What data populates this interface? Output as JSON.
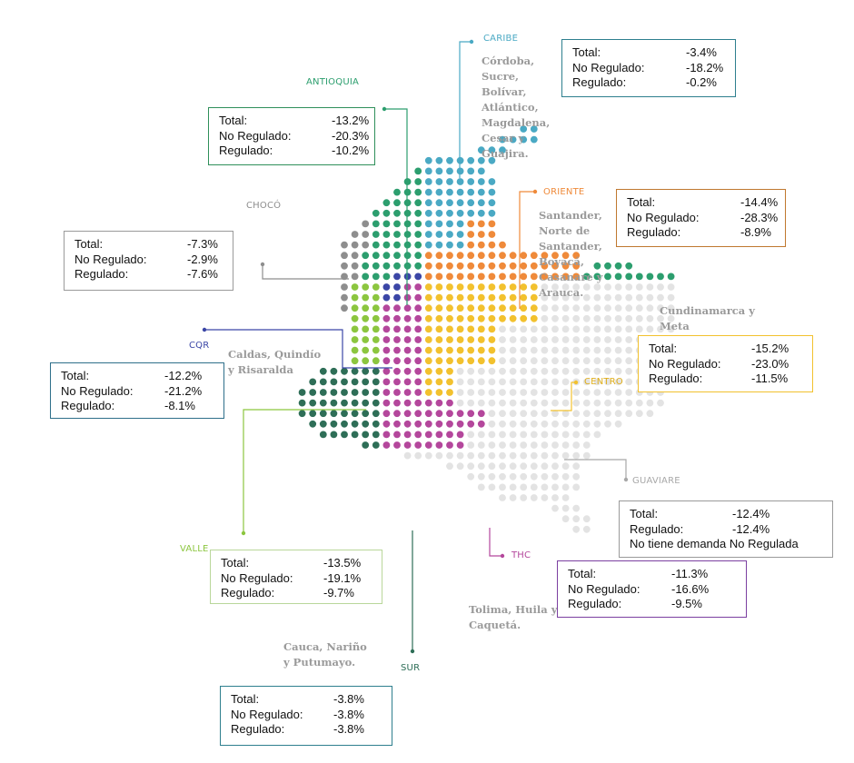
{
  "regions": [
    {
      "id": "caribe",
      "label": "CARIBE",
      "color": "#4aa9c4",
      "description": [
        "Córdoba,",
        "Sucre,",
        "Bolívar,",
        "Atlántico,",
        "Magdalena,",
        "Cesar y",
        "Guajira."
      ],
      "stats": [
        {
          "label": "Total:",
          "value": "-3.4%"
        },
        {
          "label": "No Regulado:",
          "value": "-18.2%"
        },
        {
          "label": "Regulado:",
          "value": "-0.2%"
        }
      ]
    },
    {
      "id": "antioquia",
      "label": "ANTIOQUIA",
      "color": "#2c9e6e",
      "description": [],
      "stats": [
        {
          "label": "Total:",
          "value": "-13.2%"
        },
        {
          "label": "No Regulado:",
          "value": "-20.3%"
        },
        {
          "label": "Regulado:",
          "value": "-10.2%"
        }
      ]
    },
    {
      "id": "oriente",
      "label": "ORIENTE",
      "color": "#ef8a3a",
      "description": [
        "Santander,",
        "Norte de",
        "Santander,",
        "Boyacá,",
        "Casanare y",
        "Arauca."
      ],
      "stats": [
        {
          "label": "Total:",
          "value": "-14.4%"
        },
        {
          "label": "No Regulado:",
          "value": "-28.3%"
        },
        {
          "label": "Regulado:",
          "value": "-8.9%"
        }
      ]
    },
    {
      "id": "choco",
      "label": "CHOCÓ",
      "color": "#8e8e8e",
      "description": [],
      "stats": [
        {
          "label": "Total:",
          "value": "-7.3%"
        },
        {
          "label": "No Regulado:",
          "value": "-2.9%"
        },
        {
          "label": "Regulado:",
          "value": "-7.6%"
        }
      ]
    },
    {
      "id": "centro",
      "label": "CENTRO",
      "color": "#f2c12e",
      "description": [
        "Cundinamarca y",
        "Meta"
      ],
      "stats": [
        {
          "label": "Total:",
          "value": "-15.2%"
        },
        {
          "label": "No Regulado:",
          "value": "-23.0%"
        },
        {
          "label": "Regulado:",
          "value": "-11.5%"
        }
      ]
    },
    {
      "id": "cqr",
      "label": "CQR",
      "color": "#3b46a6",
      "description": [
        "Caldas, Quindío",
        "y Risaralda"
      ],
      "stats": [
        {
          "label": "Total:",
          "value": "-12.2%"
        },
        {
          "label": "No Regulado:",
          "value": "-21.2%"
        },
        {
          "label": "Regulado:",
          "value": "-8.1%"
        }
      ]
    },
    {
      "id": "guaviare",
      "label": "GUAVIARE",
      "color": "#a8a8a8",
      "description": [],
      "stats": [
        {
          "label": "Total:",
          "value": "-12.4%"
        },
        {
          "label": "Regulado:",
          "value": "-12.4%"
        },
        {
          "label": "No tiene demanda No Regulada",
          "value": ""
        }
      ]
    },
    {
      "id": "valle",
      "label": "VALLE",
      "color": "#8cc63f",
      "description": [],
      "stats": [
        {
          "label": "Total:",
          "value": "-13.5%"
        },
        {
          "label": "No Regulado:",
          "value": "-19.1%"
        },
        {
          "label": "Regulado:",
          "value": "-9.7%"
        }
      ]
    },
    {
      "id": "thc",
      "label": "THC",
      "color": "#b4479c",
      "description": [
        "Tolima, Huila y",
        "Caquetá."
      ],
      "stats": [
        {
          "label": "Total:",
          "value": "-11.3%"
        },
        {
          "label": "No Regulado:",
          "value": "-16.6%"
        },
        {
          "label": "Regulado:",
          "value": "-9.5%"
        }
      ]
    },
    {
      "id": "sur",
      "label": "SUR",
      "color": "#2e6e57",
      "description": [
        "Cauca, Nariño",
        "y Putumayo."
      ],
      "stats": [
        {
          "label": "Total:",
          "value": "-3.8%"
        },
        {
          "label": "No Regulado:",
          "value": "-3.8%"
        },
        {
          "label": "Regulado:",
          "value": "-3.8%"
        }
      ]
    }
  ],
  "colors": {
    "caribe_box_border": "#2e7f8e",
    "antioquia_box_border": "#2f8f5a",
    "oriente_box_border": "#c0782f",
    "choco_box_border": "#9a9a9a",
    "centro_box_border": "#f2c12e",
    "cqr_box_border": "#2e6f8a",
    "guaviare_box_border": "#9a9a9a",
    "valle_box_border": "#b9d79a",
    "thc_box_border": "#7b3fa0",
    "sur_box_border": "#2e7f8e",
    "blank_dot": "#e3e3e3",
    "text": "#111111"
  }
}
